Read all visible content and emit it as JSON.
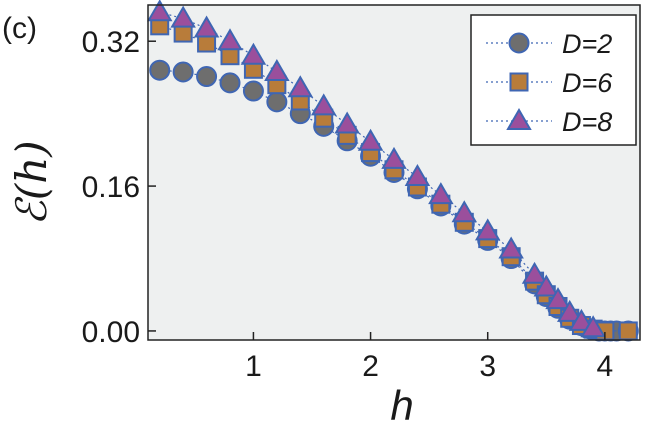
{
  "chart_data": {
    "type": "scatter",
    "panel_label": "(c)",
    "xlabel": "h",
    "ylabel": "ℰ(h)",
    "xlim": [
      0.1,
      4.3
    ],
    "ylim": [
      -0.01,
      0.36
    ],
    "x_ticks": [
      1,
      2,
      3,
      4
    ],
    "y_ticks": [
      0.0,
      0.16,
      0.32
    ],
    "y_tick_labels": [
      "0.00",
      "0.16",
      "0.32"
    ],
    "x_tick_labels": [
      "1",
      "2",
      "3",
      "4"
    ],
    "grid": false,
    "legend_position": "top-right",
    "colors": {
      "background": "#eef0f0",
      "marker_edge": "#3f66b3",
      "series_line": "#3f66b3"
    },
    "series": [
      {
        "name": "D=2",
        "marker": "circle",
        "fill": "#6e6e6e",
        "x": [
          0.2,
          0.4,
          0.6,
          0.8,
          1.0,
          1.2,
          1.4,
          1.6,
          1.8,
          2.0,
          2.2,
          2.4,
          2.6,
          2.8,
          3.0,
          3.2,
          3.4,
          3.5,
          3.6,
          3.7,
          3.8,
          3.85,
          3.9,
          3.95,
          4.0,
          4.05,
          4.1,
          4.2
        ],
        "y": [
          0.288,
          0.286,
          0.281,
          0.274,
          0.265,
          0.253,
          0.24,
          0.226,
          0.21,
          0.193,
          0.175,
          0.157,
          0.138,
          0.118,
          0.1,
          0.08,
          0.052,
          0.038,
          0.025,
          0.013,
          0.006,
          0.003,
          0.001,
          0.0,
          0.0,
          0.0,
          0.0,
          0.0
        ]
      },
      {
        "name": "D=6",
        "marker": "square",
        "fill": "#b87c3a",
        "x": [
          0.2,
          0.4,
          0.6,
          0.8,
          1.0,
          1.2,
          1.4,
          1.6,
          1.8,
          2.0,
          2.2,
          2.4,
          2.6,
          2.8,
          3.0,
          3.2,
          3.4,
          3.5,
          3.6,
          3.7,
          3.8,
          3.9,
          4.0,
          4.2
        ],
        "y": [
          0.337,
          0.329,
          0.318,
          0.304,
          0.289,
          0.272,
          0.254,
          0.235,
          0.216,
          0.197,
          0.178,
          0.159,
          0.14,
          0.12,
          0.102,
          0.082,
          0.055,
          0.04,
          0.027,
          0.014,
          0.006,
          0.002,
          0.0,
          0.0
        ]
      },
      {
        "name": "D=8",
        "marker": "triangle",
        "fill": "#9b4f9c",
        "x": [
          0.2,
          0.4,
          0.6,
          0.8,
          1.0,
          1.2,
          1.4,
          1.6,
          1.8,
          2.0,
          2.2,
          2.4,
          2.6,
          2.8,
          3.0,
          3.2,
          3.4,
          3.5,
          3.6,
          3.7,
          3.8,
          3.9
        ],
        "y": [
          0.352,
          0.345,
          0.334,
          0.32,
          0.304,
          0.286,
          0.268,
          0.248,
          0.228,
          0.209,
          0.189,
          0.17,
          0.15,
          0.13,
          0.11,
          0.09,
          0.062,
          0.048,
          0.034,
          0.02,
          0.01,
          0.003
        ]
      }
    ]
  }
}
